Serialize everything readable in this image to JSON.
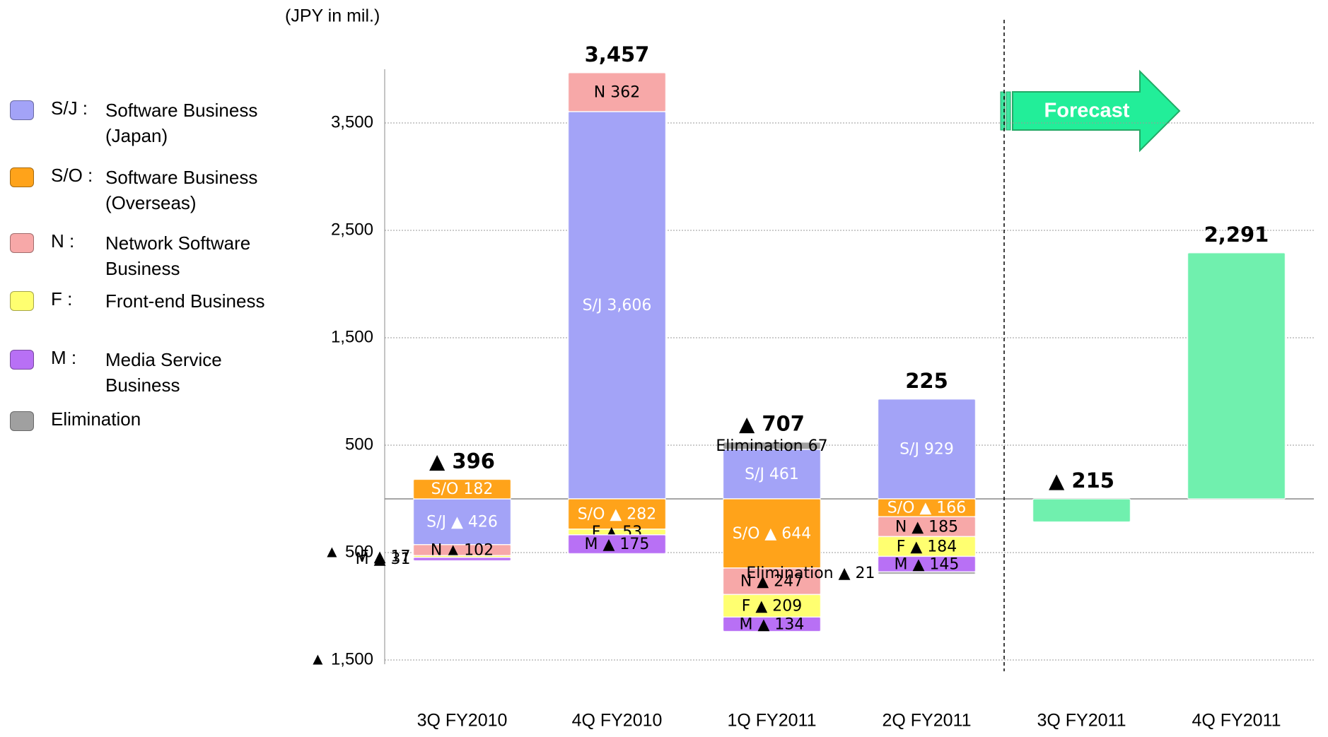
{
  "chart_data": {
    "type": "stacked_bar",
    "unit_label": "(JPY in mil.)",
    "categories": [
      "3Q FY2010",
      "4Q FY2010",
      "1Q FY2011",
      "2Q FY2011",
      "3Q FY2011",
      "4Q FY2011"
    ],
    "series": [
      {
        "name": "S/J :",
        "description": "Software Business (Japan)",
        "color": "#a3a3f7",
        "label_color": "#ffffff",
        "values": [
          -426,
          3606,
          461,
          929,
          null,
          null
        ],
        "value_labels": [
          "S/J ▲ 426",
          "S/J 3,606",
          "S/J 461",
          "S/J 929",
          null,
          null
        ]
      },
      {
        "name": "S/O :",
        "description": "Software Business (Overseas)",
        "color": "#ffa31a",
        "label_color": "#ffffff",
        "values": [
          182,
          -282,
          -644,
          -166,
          null,
          null
        ],
        "value_labels": [
          "S/O 182",
          "S/O ▲ 282",
          "S/O ▲ 644",
          "S/O ▲ 166",
          null,
          null
        ]
      },
      {
        "name": "N :",
        "description": "Network Software Business",
        "color": "#f7a8a8",
        "label_color": "#000000",
        "values": [
          -102,
          362,
          -247,
          -185,
          null,
          null
        ],
        "value_labels": [
          "N ▲ 102",
          "N 362",
          "N ▲ 247",
          "N ▲ 185",
          null,
          null
        ]
      },
      {
        "name": "F :",
        "description": "Front-end Business",
        "color": "#ffff70",
        "label_color": "#000000",
        "values": [
          -17,
          -53,
          -209,
          -184,
          null,
          null
        ],
        "value_labels": [
          "F ▲ 17",
          "F ▲ 53",
          "F ▲ 209",
          "F ▲ 184",
          null,
          null
        ]
      },
      {
        "name": "M :",
        "description": "Media Service Business",
        "color": "#b870f5",
        "label_color": "#000000",
        "values": [
          -31,
          -175,
          -134,
          -145,
          null,
          null
        ],
        "value_labels": [
          "M ▲ 31",
          "M ▲ 175",
          "M ▲ 134",
          "M ▲ 145",
          null,
          null
        ]
      },
      {
        "name": "Elimination",
        "color": "#a0a0a0",
        "label_color": "#000000",
        "values": [
          null,
          null,
          67,
          -21,
          null,
          null
        ],
        "value_labels": [
          null,
          null,
          "Elimination 67",
          "Elimination ▲ 21",
          null,
          null
        ]
      },
      {
        "name": "Forecast",
        "color": "#70f0ae",
        "in_legend": false,
        "values": [
          null,
          null,
          null,
          null,
          -215,
          2291
        ]
      }
    ],
    "totals": {
      "values": [
        -396,
        3457,
        -707,
        225,
        -215,
        2291
      ],
      "value_labels": [
        "▲ 396",
        "3,457",
        "▲ 707",
        "225",
        "▲ 215",
        "2,291"
      ]
    },
    "ylim": [
      -1500,
      4000
    ],
    "yticks": [
      {
        "value": -1500,
        "label": "▲ 1,500"
      },
      {
        "value": -500,
        "label": "▲ 500"
      },
      500,
      {
        "value": 1500,
        "label": "1,500"
      },
      {
        "value": 2500,
        "label": "2,500"
      },
      {
        "value": 3500,
        "label": "3,500"
      }
    ],
    "grid": true
  }
}
